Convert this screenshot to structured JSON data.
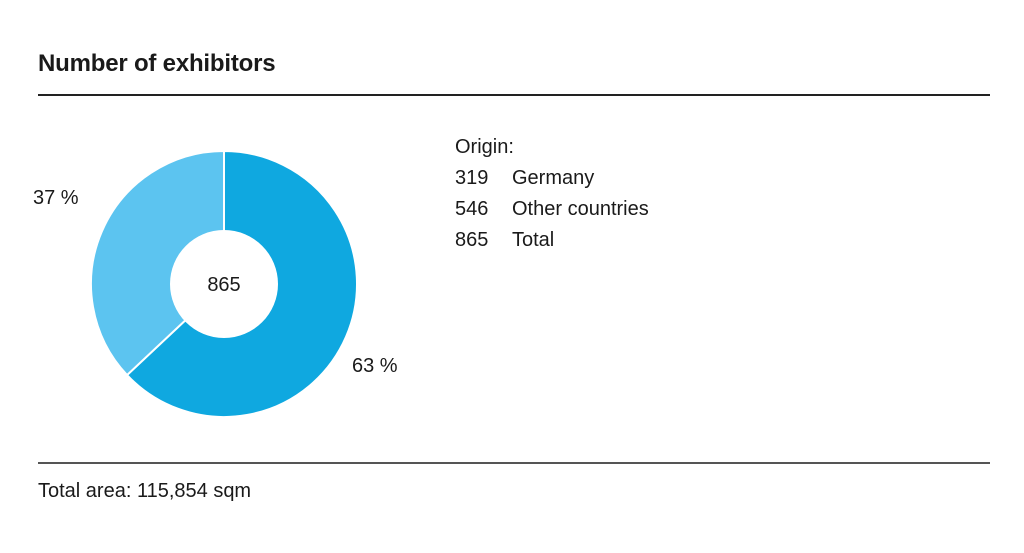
{
  "title": "Number of exhibitors",
  "chart_data": {
    "type": "pie",
    "center_label": "865",
    "slices": [
      {
        "label": "63 %",
        "value": 63,
        "color": "#0fa8e0"
      },
      {
        "label": "37 %",
        "value": 37,
        "color": "#5cc4f0"
      }
    ]
  },
  "origin": {
    "heading": "Origin:",
    "rows": [
      {
        "value": "319",
        "label": "Germany"
      },
      {
        "value": "546",
        "label": "Other countries"
      },
      {
        "value": "865",
        "label": "Total"
      }
    ]
  },
  "footer": "Total area: 115,854 sqm"
}
